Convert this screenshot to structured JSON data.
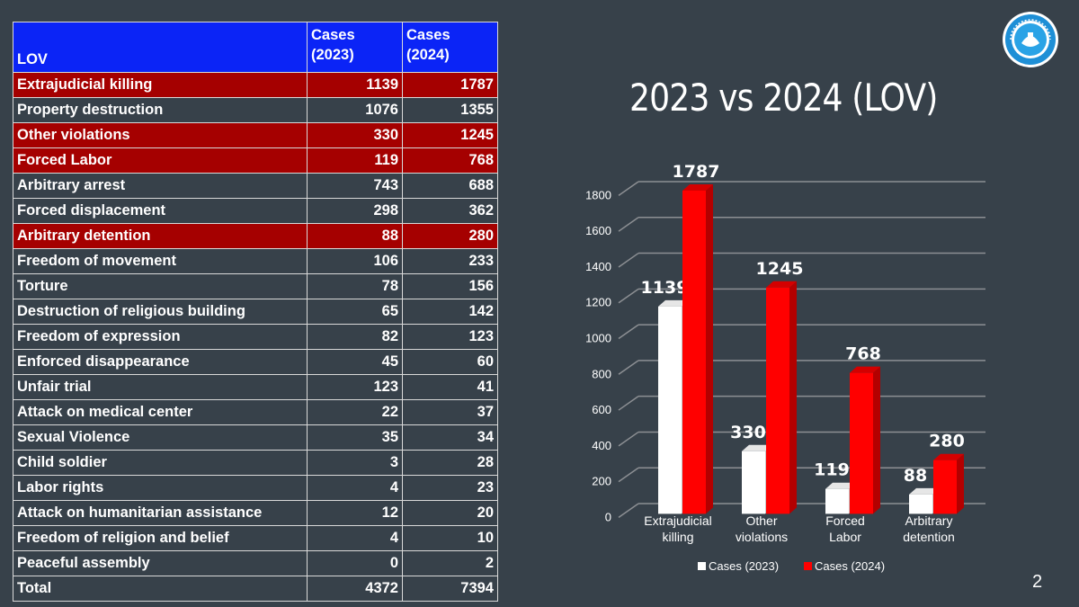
{
  "table": {
    "headers": [
      "LOV",
      "Cases\n(2023)",
      "Cases\n(2024)"
    ],
    "header_lines": [
      [
        "LOV"
      ],
      [
        "Cases",
        "(2023)"
      ],
      [
        "Cases",
        "(2024)"
      ]
    ],
    "rows": [
      {
        "label": "Extrajudicial killing",
        "v2023": "1139",
        "v2024": "1787",
        "highlight": true
      },
      {
        "label": "Property destruction",
        "v2023": "1076",
        "v2024": "1355",
        "highlight": false
      },
      {
        "label": "Other violations",
        "v2023": "330",
        "v2024": "1245",
        "highlight": true
      },
      {
        "label": "Forced Labor",
        "v2023": "119",
        "v2024": "768",
        "highlight": true
      },
      {
        "label": "Arbitrary arrest",
        "v2023": "743",
        "v2024": "688",
        "highlight": false
      },
      {
        "label": "Forced displacement",
        "v2023": "298",
        "v2024": "362",
        "highlight": false
      },
      {
        "label": "Arbitrary detention",
        "v2023": "88",
        "v2024": "280",
        "highlight": true
      },
      {
        "label": "Freedom of movement",
        "v2023": "106",
        "v2024": "233",
        "highlight": false
      },
      {
        "label": "Torture",
        "v2023": "78",
        "v2024": "156",
        "highlight": false
      },
      {
        "label": "Destruction of religious building",
        "v2023": "65",
        "v2024": "142",
        "highlight": false
      },
      {
        "label": "Freedom of expression",
        "v2023": "82",
        "v2024": "123",
        "highlight": false
      },
      {
        "label": "Enforced disappearance",
        "v2023": "45",
        "v2024": "60",
        "highlight": false
      },
      {
        "label": "Unfair trial",
        "v2023": "123",
        "v2024": "41",
        "highlight": false
      },
      {
        "label": "Attack on medical center",
        "v2023": "22",
        "v2024": "37",
        "highlight": false
      },
      {
        "label": "Sexual Violence",
        "v2023": "35",
        "v2024": "34",
        "highlight": false
      },
      {
        "label": "Child soldier",
        "v2023": "3",
        "v2024": "28",
        "highlight": false
      },
      {
        "label": "Labor rights",
        "v2023": "4",
        "v2024": "23",
        "highlight": false
      },
      {
        "label": "Attack on humanitarian assistance",
        "v2023": "12",
        "v2024": "20",
        "highlight": false
      },
      {
        "label": "Freedom of religion and belief",
        "v2023": "4",
        "v2024": "10",
        "highlight": false
      },
      {
        "label": "Peaceful assembly",
        "v2023": "0",
        "v2024": "2",
        "highlight": false
      },
      {
        "label": "Total",
        "v2023": "4372",
        "v2024": "7394",
        "highlight": false
      }
    ]
  },
  "chart_data": {
    "type": "bar",
    "title": "2023 vs 2024 (LOV)",
    "categories": [
      [
        "Extrajudicial",
        "killing"
      ],
      [
        "Other",
        "violations"
      ],
      [
        "Forced",
        "Labor"
      ],
      [
        "Arbitrary",
        "detention"
      ]
    ],
    "series": [
      {
        "name": "Cases (2023)",
        "values": [
          1139,
          330,
          119,
          88
        ],
        "color": "#ffffff"
      },
      {
        "name": "Cases (2024)",
        "values": [
          1787,
          1245,
          768,
          280
        ],
        "color": "#ff0000"
      }
    ],
    "ylim": [
      0,
      1800
    ],
    "yticks": [
      0,
      200,
      400,
      600,
      800,
      1000,
      1200,
      1400,
      1600,
      1800
    ],
    "grid": true,
    "legend": "bottom",
    "xlabel": "",
    "ylabel": ""
  },
  "colors": {
    "background": "#37414a",
    "header_blue": "#0b24f6",
    "highlight_red": "#a50000",
    "bar_2024": "#ff0000",
    "bar_2023": "#ffffff"
  },
  "logo": {
    "icon": "ministry-seal-logo"
  },
  "page_number": "2"
}
